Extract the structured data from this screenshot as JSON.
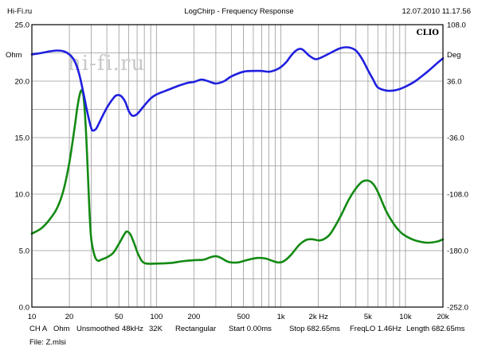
{
  "header": {
    "left": "Hi-Fi.ru",
    "center": "LogChirp - Frequency Response",
    "right": "12.07.2010 11.17.56"
  },
  "watermark": "hi-fi.ru",
  "brand": "CLIO",
  "chart_data": {
    "type": "line",
    "x_scale": "log",
    "xlim": [
      10,
      20000
    ],
    "x_ticks": [
      10,
      20,
      50,
      100,
      200,
      500,
      1000,
      2000,
      5000,
      10000,
      20000
    ],
    "x_tick_labels": [
      "10",
      "20",
      "50",
      "100",
      "200",
      "500",
      "1k",
      "2k Hz",
      "5k",
      "10k",
      "20k"
    ],
    "left_axis": {
      "unit": "Ohm",
      "lim": [
        0,
        25
      ],
      "ticks": [
        0,
        5,
        10,
        15,
        20,
        25
      ],
      "tick_labels": [
        "0.0",
        "5.0",
        "10.0",
        "15.0",
        "20.0",
        "25.0"
      ]
    },
    "right_axis": {
      "unit": "Deg",
      "lim": [
        -252,
        108
      ],
      "ticks": [
        -252,
        -180,
        -108,
        -36,
        36,
        108
      ],
      "tick_labels": [
        "-252.0",
        "-180.0",
        "-108.0",
        "-36.0",
        "36.0",
        "108.0"
      ]
    },
    "grid": true,
    "series": [
      {
        "axis": "left",
        "color": "#138a13",
        "points": [
          [
            10,
            6.5
          ],
          [
            12,
            7.0
          ],
          [
            14,
            7.8
          ],
          [
            16,
            8.8
          ],
          [
            18,
            10.4
          ],
          [
            20,
            12.8
          ],
          [
            22,
            15.8
          ],
          [
            23,
            17.4
          ],
          [
            24,
            18.6
          ],
          [
            25,
            19.2
          ],
          [
            26,
            18.6
          ],
          [
            27,
            16.2
          ],
          [
            28,
            12.5
          ],
          [
            29,
            8.5
          ],
          [
            30,
            6.0
          ],
          [
            32,
            4.5
          ],
          [
            34,
            4.1
          ],
          [
            36,
            4.2
          ],
          [
            40,
            4.4
          ],
          [
            45,
            4.8
          ],
          [
            50,
            5.6
          ],
          [
            55,
            6.4
          ],
          [
            58,
            6.7
          ],
          [
            62,
            6.4
          ],
          [
            66,
            5.7
          ],
          [
            72,
            4.6
          ],
          [
            80,
            3.9
          ],
          [
            100,
            3.85
          ],
          [
            130,
            3.9
          ],
          [
            160,
            4.05
          ],
          [
            200,
            4.15
          ],
          [
            240,
            4.2
          ],
          [
            270,
            4.4
          ],
          [
            300,
            4.5
          ],
          [
            330,
            4.35
          ],
          [
            380,
            4.0
          ],
          [
            450,
            3.95
          ],
          [
            550,
            4.2
          ],
          [
            650,
            4.35
          ],
          [
            750,
            4.3
          ],
          [
            850,
            4.1
          ],
          [
            950,
            3.95
          ],
          [
            1050,
            4.05
          ],
          [
            1200,
            4.6
          ],
          [
            1400,
            5.5
          ],
          [
            1600,
            5.95
          ],
          [
            1800,
            6.0
          ],
          [
            2000,
            5.9
          ],
          [
            2200,
            6.0
          ],
          [
            2500,
            6.5
          ],
          [
            3000,
            8.0
          ],
          [
            3500,
            9.5
          ],
          [
            4000,
            10.5
          ],
          [
            4500,
            11.1
          ],
          [
            5000,
            11.2
          ],
          [
            5500,
            10.9
          ],
          [
            6000,
            10.2
          ],
          [
            7000,
            8.5
          ],
          [
            8000,
            7.4
          ],
          [
            9000,
            6.7
          ],
          [
            10000,
            6.3
          ],
          [
            12000,
            5.9
          ],
          [
            15000,
            5.7
          ],
          [
            18000,
            5.8
          ],
          [
            20000,
            6.0
          ]
        ]
      },
      {
        "axis": "right",
        "color": "#1f1fe0",
        "points": [
          [
            10,
            70
          ],
          [
            12,
            72
          ],
          [
            14,
            74
          ],
          [
            16,
            75
          ],
          [
            18,
            74
          ],
          [
            20,
            70
          ],
          [
            22,
            62
          ],
          [
            24,
            45
          ],
          [
            26,
            20
          ],
          [
            28,
            -5
          ],
          [
            30,
            -24
          ],
          [
            31,
            -27
          ],
          [
            33,
            -24
          ],
          [
            36,
            -12
          ],
          [
            40,
            2
          ],
          [
            45,
            14
          ],
          [
            48,
            18
          ],
          [
            52,
            17
          ],
          [
            56,
            10
          ],
          [
            60,
            -2
          ],
          [
            64,
            -8
          ],
          [
            70,
            -6
          ],
          [
            80,
            5
          ],
          [
            90,
            14
          ],
          [
            100,
            19
          ],
          [
            120,
            24
          ],
          [
            150,
            30
          ],
          [
            180,
            34
          ],
          [
            200,
            35
          ],
          [
            230,
            38
          ],
          [
            260,
            36
          ],
          [
            300,
            33
          ],
          [
            350,
            36
          ],
          [
            400,
            42
          ],
          [
            500,
            48
          ],
          [
            600,
            49
          ],
          [
            700,
            49
          ],
          [
            800,
            48
          ],
          [
            900,
            50
          ],
          [
            1000,
            54
          ],
          [
            1100,
            60
          ],
          [
            1200,
            68
          ],
          [
            1300,
            74
          ],
          [
            1400,
            77
          ],
          [
            1500,
            76
          ],
          [
            1700,
            68
          ],
          [
            1900,
            64
          ],
          [
            2100,
            66
          ],
          [
            2500,
            72
          ],
          [
            3000,
            78
          ],
          [
            3500,
            79
          ],
          [
            4000,
            75
          ],
          [
            4500,
            64
          ],
          [
            5000,
            50
          ],
          [
            5500,
            38
          ],
          [
            6000,
            28
          ],
          [
            7000,
            24
          ],
          [
            8000,
            24
          ],
          [
            9000,
            26
          ],
          [
            10000,
            29
          ],
          [
            12000,
            36
          ],
          [
            15000,
            48
          ],
          [
            18000,
            59
          ],
          [
            20000,
            65
          ]
        ]
      }
    ]
  },
  "footer": {
    "items": [
      "CH A",
      "Ohm",
      "Unsmoothed",
      "48kHz",
      "32K",
      "Rectangular",
      "Start 0.00ms",
      "Stop 682.65ms",
      "FreqLO 1.46Hz",
      "Length 682.65ms"
    ],
    "file": "File: Z.mlsi"
  }
}
